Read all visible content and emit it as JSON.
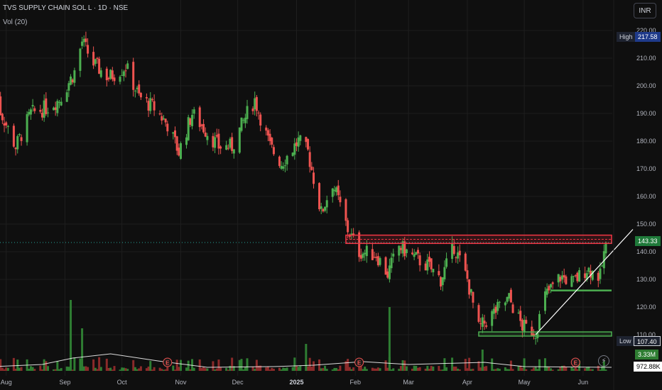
{
  "header": {
    "symbol_line": "TVS SUPPLY CHAIN SOL L · 1D · NSE",
    "volume_label": "Vol (20)"
  },
  "currency_button": "INR",
  "price_tags": {
    "high_label": "High",
    "high_value": "217.58",
    "low_label": "Low",
    "low_value": "107.40",
    "last_price": "143.33",
    "volume_value": "3.33M",
    "volume_avg": "972.88K"
  },
  "icons": {
    "events": "earnings-e-icon",
    "bolt": "lightning-icon"
  },
  "colors": {
    "up": "#26a69a",
    "up_bar": "#4caf50",
    "down": "#ef5350",
    "grid": "#1e1e1e",
    "resistance": "#f23645",
    "support": "#4caf50",
    "trendline": "#ffffff"
  },
  "chart_data": {
    "type": "candlestick",
    "title": "TVS SUPPLY CHAIN SOL L · 1D · NSE",
    "ylim": [
      107,
      222
    ],
    "y_ticks": [
      110,
      120,
      130,
      140,
      150,
      160,
      170,
      180,
      190,
      200,
      210,
      220
    ],
    "y_tick_labels": [
      "110.00",
      "120.00",
      "130.00",
      "140.00",
      "150.00",
      "160.00",
      "170.00",
      "180.00",
      "190.00",
      "200.00",
      "210.00",
      "220.00"
    ],
    "x_tick_labels": [
      "Aug",
      "Sep",
      "Oct",
      "Nov",
      "Dec",
      "2025",
      "Feb",
      "Mar",
      "Apr",
      "May",
      "Jun"
    ],
    "price_path": [
      {
        "date": "2024-07-25",
        "close": 197
      },
      {
        "date": "2024-08-01",
        "close": 186
      },
      {
        "date": "2024-08-06",
        "close": 178
      },
      {
        "date": "2024-08-14",
        "close": 190
      },
      {
        "date": "2024-08-22",
        "close": 192
      },
      {
        "date": "2024-08-29",
        "close": 195
      },
      {
        "date": "2024-09-06",
        "close": 205
      },
      {
        "date": "2024-09-10",
        "close": 216
      },
      {
        "date": "2024-09-16",
        "close": 208
      },
      {
        "date": "2024-09-24",
        "close": 203
      },
      {
        "date": "2024-10-03",
        "close": 207
      },
      {
        "date": "2024-10-10",
        "close": 196
      },
      {
        "date": "2024-10-18",
        "close": 192
      },
      {
        "date": "2024-10-25",
        "close": 186
      },
      {
        "date": "2024-10-31",
        "close": 176
      },
      {
        "date": "2024-11-07",
        "close": 190
      },
      {
        "date": "2024-11-14",
        "close": 184
      },
      {
        "date": "2024-11-21",
        "close": 178
      },
      {
        "date": "2024-11-28",
        "close": 178
      },
      {
        "date": "2024-12-06",
        "close": 190
      },
      {
        "date": "2024-12-10",
        "close": 195
      },
      {
        "date": "2024-12-18",
        "close": 178
      },
      {
        "date": "2024-12-24",
        "close": 172
      },
      {
        "date": "2025-01-02",
        "close": 180
      },
      {
        "date": "2025-01-07",
        "close": 176
      },
      {
        "date": "2025-01-14",
        "close": 154
      },
      {
        "date": "2025-01-20",
        "close": 165
      },
      {
        "date": "2025-01-28",
        "close": 148
      },
      {
        "date": "2025-02-03",
        "close": 140
      },
      {
        "date": "2025-02-12",
        "close": 139
      },
      {
        "date": "2025-02-18",
        "close": 132
      },
      {
        "date": "2025-02-24",
        "close": 142
      },
      {
        "date": "2025-03-04",
        "close": 138
      },
      {
        "date": "2025-03-11",
        "close": 135
      },
      {
        "date": "2025-03-18",
        "close": 130
      },
      {
        "date": "2025-03-25",
        "close": 142
      },
      {
        "date": "2025-04-01",
        "close": 130
      },
      {
        "date": "2025-04-07",
        "close": 112
      },
      {
        "date": "2025-04-15",
        "close": 118
      },
      {
        "date": "2025-04-23",
        "close": 123
      },
      {
        "date": "2025-04-30",
        "close": 113
      },
      {
        "date": "2025-05-07",
        "close": 111
      },
      {
        "date": "2025-05-12",
        "close": 124
      },
      {
        "date": "2025-05-20",
        "close": 131
      },
      {
        "date": "2025-05-27",
        "close": 129
      },
      {
        "date": "2025-06-03",
        "close": 134
      },
      {
        "date": "2025-06-10",
        "close": 131
      },
      {
        "date": "2025-06-13",
        "close": 143.33
      }
    ],
    "high": 217.58,
    "low": 107.4,
    "last": 143.33,
    "resistance_zone": [
      143,
      146
    ],
    "support_zone": [
      109.5,
      111
    ],
    "support_line": 126,
    "trendline": {
      "from": {
        "date": "2025-05-07",
        "price": 110
      },
      "to": {
        "date": "2025-06-16",
        "price": 145
      }
    },
    "volume": {
      "last": "3.33M",
      "ma20": "972.88K"
    },
    "grid": true
  }
}
